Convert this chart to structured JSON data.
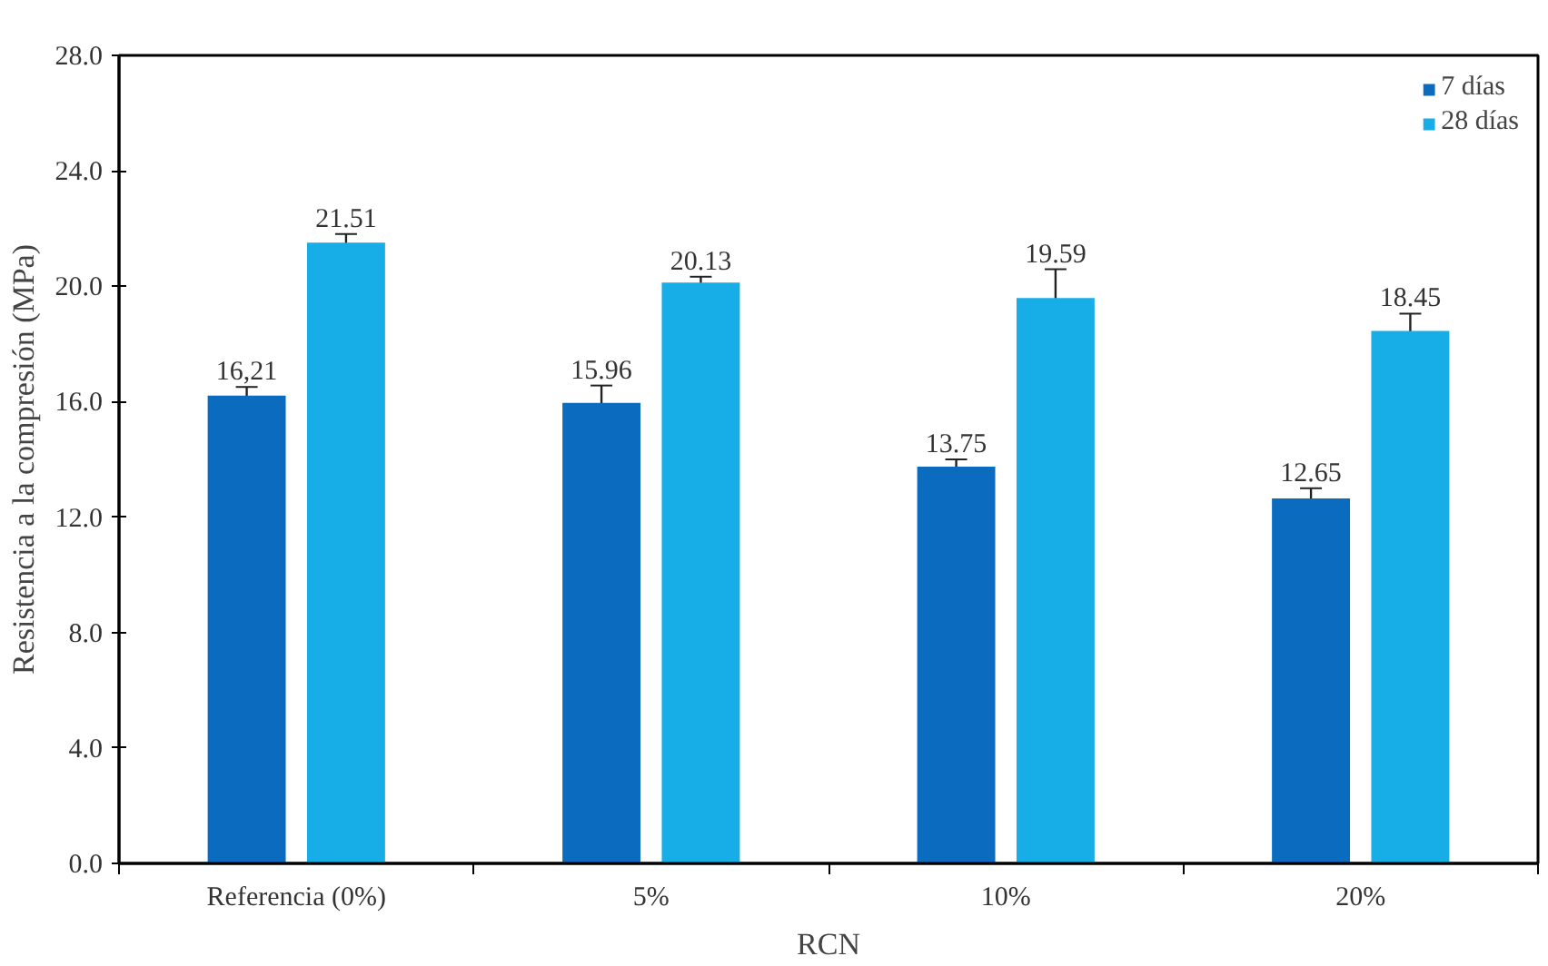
{
  "chart_data": {
    "type": "bar",
    "xlabel": "RCN",
    "ylabel": "Resistencia a la compresión (MPa)",
    "categories": [
      "Referencia (0%)",
      "5%",
      "10%",
      "20%"
    ],
    "series": [
      {
        "name": "7 días",
        "color": "#0b6bbf",
        "values": [
          16.21,
          15.96,
          13.75,
          12.65
        ],
        "errors": [
          0.3,
          0.6,
          0.25,
          0.35
        ],
        "value_labels": [
          "16,21",
          "15.96",
          "13.75",
          "12.65"
        ]
      },
      {
        "name": "28 días",
        "color": "#17aee8",
        "values": [
          21.51,
          20.13,
          19.59,
          18.45
        ],
        "errors": [
          0.3,
          0.2,
          1.0,
          0.6
        ],
        "value_labels": [
          "21.51",
          "20.13",
          "19.59",
          "18.45"
        ]
      }
    ],
    "ylim": [
      0,
      28
    ],
    "yticks": [
      {
        "value": 0,
        "label": "0.0"
      },
      {
        "value": 4,
        "label": "4.0"
      },
      {
        "value": 8,
        "label": "8.0"
      },
      {
        "value": 12,
        "label": "12.0"
      },
      {
        "value": 16,
        "label": "16.0"
      },
      {
        "value": 20,
        "label": "20.0"
      },
      {
        "value": 24,
        "label": "24.0"
      },
      {
        "value": 28,
        "label": "28.0"
      }
    ],
    "grid": false,
    "legend": "top right"
  }
}
